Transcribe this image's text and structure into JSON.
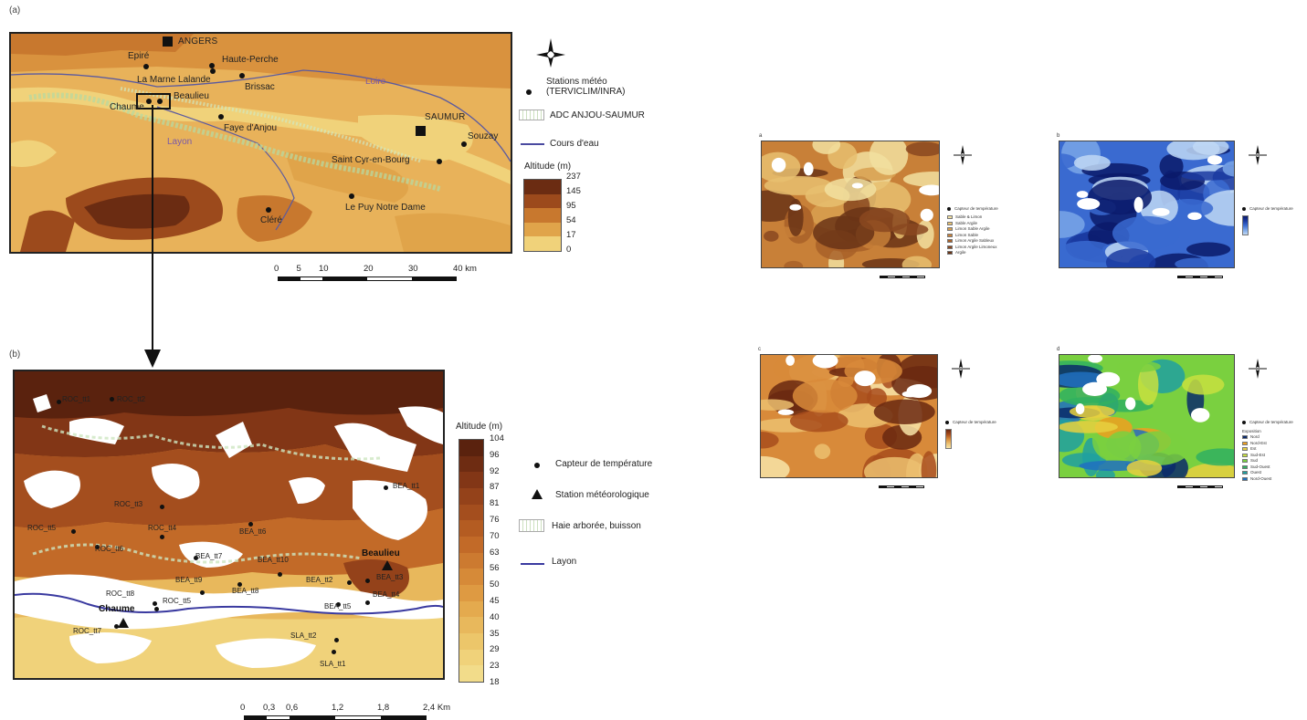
{
  "panel_a": {
    "label": "(a)",
    "cities": [
      {
        "name": "ANGERS"
      },
      {
        "name": "SAUMUR"
      }
    ],
    "towns": [
      {
        "name": "Epiré"
      },
      {
        "name": "Haute-Perche"
      },
      {
        "name": "La Marne Lalande"
      },
      {
        "name": "Brissac"
      },
      {
        "name": "Beaulieu"
      },
      {
        "name": "Chaume"
      },
      {
        "name": "Faye d'Anjou"
      },
      {
        "name": "Souzay"
      },
      {
        "name": "Saint Cyr-en-Bourg"
      },
      {
        "name": "Le Puy Notre Dame"
      },
      {
        "name": "Cléré"
      }
    ],
    "rivers": {
      "loire": "Loire",
      "layon": "Layon"
    },
    "legend": {
      "stations": "Stations météo (TERVICLIM/INRA)",
      "adc": "ADC ANJOU-SAUMUR",
      "rivers": "Cours d'eau",
      "altitude_title": "Altitude (m)",
      "altitude_ticks": [
        "237",
        "145",
        "95",
        "54",
        "17",
        "0"
      ],
      "altitude_colors": [
        "#6b2c12",
        "#9c4a1c",
        "#c8782e",
        "#e0a44a",
        "#f0d27a"
      ]
    },
    "scale": {
      "ticks": [
        "0",
        "5",
        "10",
        "20",
        "30",
        "40 km"
      ]
    }
  },
  "panel_b": {
    "label": "(b)",
    "altitude_title": "Altitude (m)",
    "altitude_ticks": [
      "104",
      "96",
      "92",
      "87",
      "81",
      "76",
      "70",
      "63",
      "56",
      "50",
      "45",
      "40",
      "35",
      "29",
      "23",
      "18"
    ],
    "altitude_colors": [
      "#5a220e",
      "#6e2c12",
      "#823616",
      "#94421a",
      "#a44e1e",
      "#b45c22",
      "#c26a28",
      "#cc7a30",
      "#d68a38",
      "#de9a42",
      "#e4aa4e",
      "#e8b85c",
      "#ecc66a",
      "#f0d27a",
      "#f2dc8a"
    ],
    "legend": {
      "sensor": "Capteur de température",
      "station": "Station météorologique",
      "hedge": "Haie arborée, buisson",
      "river": "Layon"
    },
    "stations": [
      {
        "name": "Beaulieu"
      },
      {
        "name": "Chaume"
      }
    ],
    "sensors": [
      {
        "name": "ROC_tt1"
      },
      {
        "name": "ROC_tt2"
      },
      {
        "name": "ROC_tt3"
      },
      {
        "name": "ROC_tt4"
      },
      {
        "name": "ROC_tt5"
      },
      {
        "name": "ROC_tt6"
      },
      {
        "name": "ROC_tt8"
      },
      {
        "name": "ROC_tt5"
      },
      {
        "name": "ROC_tt7"
      },
      {
        "name": "BEA_tt1"
      },
      {
        "name": "BEA_tt6"
      },
      {
        "name": "BEA_tt7"
      },
      {
        "name": "BEA_tt10"
      },
      {
        "name": "BEA_tt9"
      },
      {
        "name": "BEA_tt8"
      },
      {
        "name": "BEA_tt2"
      },
      {
        "name": "BEA_tt3"
      },
      {
        "name": "BEA_tt4"
      },
      {
        "name": "BEA_tt5"
      },
      {
        "name": "SLA_tt2"
      },
      {
        "name": "SLA_tt1"
      }
    ],
    "scale": {
      "ticks": [
        "0",
        "0,3",
        "0,6",
        "1,2",
        "1,8",
        "2,4 Km"
      ]
    }
  },
  "thumbnails": [
    {
      "tag": "a",
      "legend_title": "Capteur de température",
      "legend_items": [
        "Sable & Limon",
        "Sable Argile",
        "Limon Sable Argile",
        "Limon Sable",
        "Limon Argile Sableux",
        "Limon Argile Limoneux",
        "Argile"
      ],
      "colors": [
        "#f2e0a0",
        "#e8c070",
        "#d8a050",
        "#c88038",
        "#a86028",
        "#8a4820",
        "#6a3416"
      ]
    },
    {
      "tag": "b",
      "legend_title": "Capteur de température",
      "colors": [
        "#0a1a6a",
        "#1a3aa0",
        "#3a6ad0",
        "#7aa6e8",
        "#c0d8f4"
      ]
    },
    {
      "tag": "c",
      "legend_title": "Capteur de température",
      "colors": [
        "#6a2810",
        "#a84c1c",
        "#d88a3a",
        "#ecc070",
        "#f8e4a8"
      ]
    },
    {
      "tag": "d",
      "legend_title": "Capteur de température",
      "legend_subtitle": "Exposition",
      "legend_items": [
        "Nord",
        "Nord-Est",
        "Est",
        "Sud-Est",
        "Sud",
        "Sud-Ouest",
        "Ouest",
        "Nord-Ouest"
      ],
      "colors": [
        "#0a2a6a",
        "#f0a020",
        "#e8d040",
        "#c8e040",
        "#7ad040",
        "#30b060",
        "#20a0a0",
        "#2070c0"
      ]
    }
  ],
  "compass": {
    "n": "N",
    "s": "S",
    "e": "E",
    "w": "W"
  }
}
